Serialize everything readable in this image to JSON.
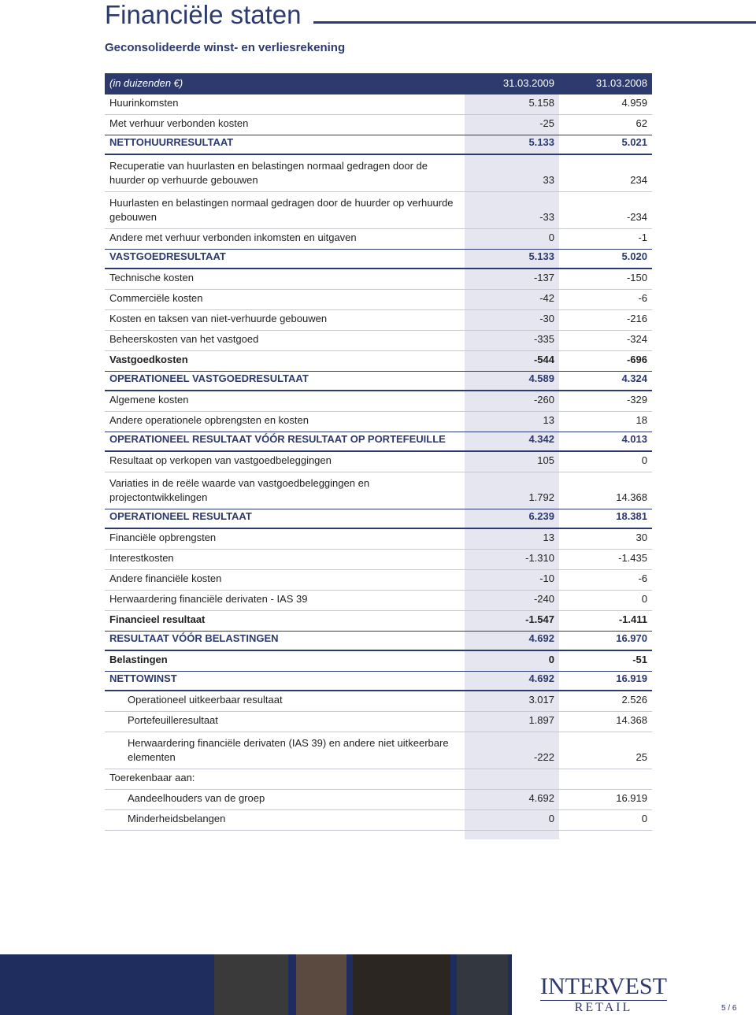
{
  "title": "Financiële staten",
  "subtitle": "Geconsolideerde winst- en verliesrekening",
  "table": {
    "header": [
      "(in duizenden €)",
      "31.03.2009",
      "31.03.2008"
    ],
    "rows": [
      {
        "label": "Huurinkomsten",
        "values": [
          "5.158",
          "4.959"
        ],
        "kind": "normal"
      },
      {
        "label": "Met verhuur verbonden kosten",
        "values": [
          "-25",
          "62"
        ],
        "kind": "normal"
      },
      {
        "label": "NETTOHUURRESULTAAT",
        "values": [
          "5.133",
          "5.021"
        ],
        "kind": "total"
      },
      {
        "label": "Recuperatie van huurlasten en belastingen normaal gedragen door de huurder op verhuurde gebouwen",
        "values": [
          "33",
          "234"
        ],
        "kind": "normal"
      },
      {
        "label": "Huurlasten en belastingen normaal gedragen door de huurder op verhuurde gebouwen",
        "values": [
          "-33",
          "-234"
        ],
        "kind": "normal"
      },
      {
        "label": "Andere met verhuur verbonden inkomsten en uitgaven",
        "values": [
          "0",
          "-1"
        ],
        "kind": "normal"
      },
      {
        "label": "VASTGOEDRESULTAAT",
        "values": [
          "5.133",
          "5.020"
        ],
        "kind": "total"
      },
      {
        "label": "Technische kosten",
        "values": [
          "-137",
          "-150"
        ],
        "kind": "normal"
      },
      {
        "label": "Commerciële kosten",
        "values": [
          "-42",
          "-6"
        ],
        "kind": "normal"
      },
      {
        "label": "Kosten en taksen van niet-verhuurde gebouwen",
        "values": [
          "-30",
          "-216"
        ],
        "kind": "normal"
      },
      {
        "label": "Beheerskosten van het vastgoed",
        "values": [
          "-335",
          "-324"
        ],
        "kind": "normal"
      },
      {
        "label": "Vastgoedkosten",
        "values": [
          "-544",
          "-696"
        ],
        "kind": "bold"
      },
      {
        "label": "OPERATIONEEL VASTGOEDRESULTAAT",
        "values": [
          "4.589",
          "4.324"
        ],
        "kind": "total"
      },
      {
        "label": "Algemene kosten",
        "values": [
          "-260",
          "-329"
        ],
        "kind": "normal"
      },
      {
        "label": "Andere operationele opbrengsten en kosten",
        "values": [
          "13",
          "18"
        ],
        "kind": "normal"
      },
      {
        "label": "OPERATIONEEL RESULTAAT VÓÓR RESULTAAT OP PORTEFEUILLE",
        "values": [
          "4.342",
          "4.013"
        ],
        "kind": "total"
      },
      {
        "label": "Resultaat op verkopen van vastgoedbeleggingen",
        "values": [
          "105",
          "0"
        ],
        "kind": "normal"
      },
      {
        "label": "Variaties in de reële waarde van vastgoedbeleggingen en projectontwikkelingen",
        "values": [
          "1.792",
          "14.368"
        ],
        "kind": "normal"
      },
      {
        "label": "OPERATIONEEL RESULTAAT",
        "values": [
          "6.239",
          "18.381"
        ],
        "kind": "total"
      },
      {
        "label": "Financiële opbrengsten",
        "values": [
          "13",
          "30"
        ],
        "kind": "normal"
      },
      {
        "label": "Interestkosten",
        "values": [
          "-1.310",
          "-1.435"
        ],
        "kind": "normal"
      },
      {
        "label": "Andere financiële kosten",
        "values": [
          "-10",
          "-6"
        ],
        "kind": "normal"
      },
      {
        "label": "Herwaardering financiële derivaten - IAS 39",
        "values": [
          "-240",
          "0"
        ],
        "kind": "normal"
      },
      {
        "label": "Financieel resultaat",
        "values": [
          "-1.547",
          "-1.411"
        ],
        "kind": "bold"
      },
      {
        "label": "RESULTAAT VÓÓR BELASTINGEN",
        "values": [
          "4.692",
          "16.970"
        ],
        "kind": "total"
      },
      {
        "label": "Belastingen",
        "values": [
          "0",
          "-51"
        ],
        "kind": "bold"
      },
      {
        "label": "NETTOWINST",
        "values": [
          "4.692",
          "16.919"
        ],
        "kind": "total"
      },
      {
        "label": "Operationeel uitkeerbaar resultaat",
        "values": [
          "3.017",
          "2.526"
        ],
        "kind": "indent"
      },
      {
        "label": "Portefeuilleresultaat",
        "values": [
          "1.897",
          "14.368"
        ],
        "kind": "indent"
      },
      {
        "label": "Herwaardering financiële derivaten (IAS 39) en andere niet uitkeerbare elementen",
        "values": [
          "-222",
          "25"
        ],
        "kind": "indent"
      },
      {
        "label": "Toerekenbaar aan:",
        "kind": "normal"
      },
      {
        "label": "Aandeelhouders van de groep",
        "values": [
          "4.692",
          "16.919"
        ],
        "kind": "indent"
      },
      {
        "label": "Minderheidsbelangen",
        "values": [
          "0",
          "0"
        ],
        "kind": "indent"
      }
    ]
  },
  "footer": {
    "logo": "INTERVEST",
    "logo_sub": "RETAIL",
    "page": "5 / 6"
  }
}
